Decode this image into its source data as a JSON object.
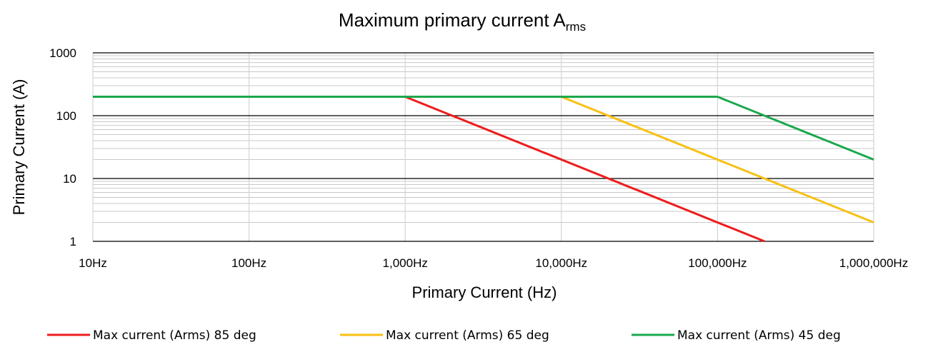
{
  "chart_data": {
    "type": "line",
    "title": "Maximum primary current A",
    "title_subscript": "rms",
    "xlabel": "Primary Current (Hz)",
    "ylabel": "Primary Current (A)",
    "x_scale": "log",
    "y_scale": "log",
    "xlim": [
      10,
      1000000
    ],
    "ylim": [
      1,
      1000
    ],
    "x_ticks": [
      {
        "value": 10,
        "label": "10Hz"
      },
      {
        "value": 100,
        "label": "100Hz"
      },
      {
        "value": 1000,
        "label": "1,000Hz"
      },
      {
        "value": 10000,
        "label": "10,000Hz"
      },
      {
        "value": 100000,
        "label": "100,000Hz"
      },
      {
        "value": 1000000,
        "label": "1,000,000Hz"
      }
    ],
    "y_ticks": [
      {
        "value": 1,
        "label": "1"
      },
      {
        "value": 10,
        "label": "10"
      },
      {
        "value": 100,
        "label": "100"
      },
      {
        "value": 1000,
        "label": "1000"
      }
    ],
    "grid": true,
    "legend_position": "bottom",
    "series": [
      {
        "name": "Max current (Arms) 85 deg",
        "color": "#ee1c1c",
        "x": [
          10,
          1000,
          200000
        ],
        "y": [
          200,
          200,
          1
        ]
      },
      {
        "name": "Max current (Arms) 65 deg",
        "color": "#f8c013",
        "x": [
          10,
          10000,
          1000000
        ],
        "y": [
          200,
          200,
          2
        ]
      },
      {
        "name": "Max current (Arms) 45 deg",
        "color": "#1aa84c",
        "x": [
          10,
          100000,
          1000000
        ],
        "y": [
          200,
          200,
          20
        ]
      }
    ]
  }
}
